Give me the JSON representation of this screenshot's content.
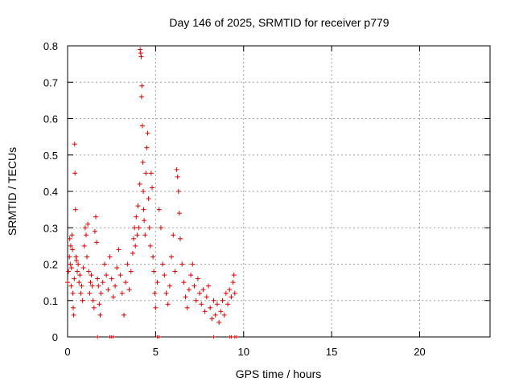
{
  "chart_data": {
    "type": "scatter",
    "title": "Day 146 of 2025, SRMTID for receiver p779",
    "xlabel": "GPS time / hours",
    "ylabel": "SRMTID / TECUs",
    "xlim": [
      0,
      24
    ],
    "ylim": [
      0,
      0.8
    ],
    "xticks": [
      0,
      5,
      10,
      15,
      20
    ],
    "yticks": [
      0,
      0.1,
      0.2,
      0.3,
      0.4,
      0.5,
      0.6,
      0.7,
      0.8
    ],
    "xtick_labels": [
      "0",
      "5",
      "10",
      "15",
      "20"
    ],
    "ytick_labels": [
      "0",
      "0.1",
      "0.2",
      "0.3",
      "0.4",
      "0.5",
      "0.6",
      "0.7",
      "0.8"
    ],
    "grid": true,
    "marker": "+",
    "series_color": "#dd0000",
    "series": [
      {
        "name": "SRMTID",
        "points": [
          [
            0.0,
            0.15
          ],
          [
            0.05,
            0.18
          ],
          [
            0.1,
            0.22
          ],
          [
            0.12,
            0.27
          ],
          [
            0.15,
            0.2
          ],
          [
            0.18,
            0.25
          ],
          [
            0.2,
            0.14
          ],
          [
            0.22,
            0.19
          ],
          [
            0.25,
            0.28
          ],
          [
            0.28,
            0.24
          ],
          [
            0.3,
            0.12
          ],
          [
            0.32,
            0.08
          ],
          [
            0.35,
            0.06
          ],
          [
            0.38,
            0.16
          ],
          [
            0.4,
            0.53
          ],
          [
            0.42,
            0.45
          ],
          [
            0.45,
            0.35
          ],
          [
            0.48,
            0.22
          ],
          [
            0.5,
            0.21
          ],
          [
            0.55,
            0.18
          ],
          [
            0.6,
            0.2
          ],
          [
            0.65,
            0.15
          ],
          [
            0.7,
            0.17
          ],
          [
            0.75,
            0.12
          ],
          [
            0.8,
            0.14
          ],
          [
            0.85,
            0.1
          ],
          [
            0.9,
            0.19
          ],
          [
            0.95,
            0.25
          ],
          [
            1.0,
            0.3
          ],
          [
            1.05,
            0.28
          ],
          [
            1.1,
            0.22
          ],
          [
            1.15,
            0.31
          ],
          [
            1.2,
            0.18
          ],
          [
            1.25,
            0.12
          ],
          [
            1.3,
            0.15
          ],
          [
            1.35,
            0.17
          ],
          [
            1.4,
            0.14
          ],
          [
            1.45,
            0.1
          ],
          [
            1.5,
            0.08
          ],
          [
            1.55,
            0.29
          ],
          [
            1.6,
            0.33
          ],
          [
            1.65,
            0.26
          ],
          [
            1.7,
            0.16
          ],
          [
            1.75,
            0.14
          ],
          [
            1.8,
            0.09
          ],
          [
            1.85,
            0.06
          ],
          [
            1.9,
            0.12
          ],
          [
            2.0,
            0.15
          ],
          [
            2.1,
            0.2
          ],
          [
            2.2,
            0.17
          ],
          [
            2.3,
            0.13
          ],
          [
            2.4,
            0.22
          ],
          [
            2.5,
            0.16
          ],
          [
            2.6,
            0.11
          ],
          [
            2.7,
            0.14
          ],
          [
            2.8,
            0.19
          ],
          [
            2.9,
            0.24
          ],
          [
            3.0,
            0.17
          ],
          [
            3.1,
            0.12
          ],
          [
            3.2,
            0.06
          ],
          [
            3.3,
            0.15
          ],
          [
            3.4,
            0.2
          ],
          [
            3.5,
            0.13
          ],
          [
            3.6,
            0.18
          ],
          [
            3.7,
            0.23
          ],
          [
            3.75,
            0.27
          ],
          [
            3.8,
            0.3
          ],
          [
            3.85,
            0.25
          ],
          [
            3.9,
            0.33
          ],
          [
            3.95,
            0.28
          ],
          [
            4.0,
            0.36
          ],
          [
            4.05,
            0.3
          ],
          [
            4.1,
            0.42
          ],
          [
            4.12,
            0.79
          ],
          [
            4.15,
            0.78
          ],
          [
            4.18,
            0.77
          ],
          [
            4.2,
            0.66
          ],
          [
            4.22,
            0.69
          ],
          [
            4.25,
            0.58
          ],
          [
            4.28,
            0.48
          ],
          [
            4.3,
            0.4
          ],
          [
            4.32,
            0.35
          ],
          [
            4.35,
            0.32
          ],
          [
            4.4,
            0.28
          ],
          [
            4.45,
            0.45
          ],
          [
            4.5,
            0.52
          ],
          [
            4.55,
            0.56
          ],
          [
            4.6,
            0.38
          ],
          [
            4.65,
            0.3
          ],
          [
            4.7,
            0.25
          ],
          [
            4.75,
            0.45
          ],
          [
            4.8,
            0.41
          ],
          [
            4.85,
            0.22
          ],
          [
            4.9,
            0.18
          ],
          [
            4.95,
            0.12
          ],
          [
            5.0,
            0.08
          ],
          [
            5.1,
            0.15
          ],
          [
            5.2,
            0.35
          ],
          [
            5.3,
            0.3
          ],
          [
            5.4,
            0.2
          ],
          [
            5.5,
            0.17
          ],
          [
            5.6,
            0.12
          ],
          [
            5.7,
            0.09
          ],
          [
            5.8,
            0.14
          ],
          [
            5.9,
            0.22
          ],
          [
            6.0,
            0.28
          ],
          [
            6.1,
            0.18
          ],
          [
            6.2,
            0.46
          ],
          [
            6.25,
            0.44
          ],
          [
            6.3,
            0.4
          ],
          [
            6.35,
            0.34
          ],
          [
            6.4,
            0.27
          ],
          [
            6.5,
            0.2
          ],
          [
            6.6,
            0.15
          ],
          [
            6.7,
            0.11
          ],
          [
            6.8,
            0.08
          ],
          [
            6.9,
            0.13
          ],
          [
            7.0,
            0.17
          ],
          [
            7.1,
            0.2
          ],
          [
            7.2,
            0.14
          ],
          [
            7.3,
            0.1
          ],
          [
            7.4,
            0.16
          ],
          [
            7.5,
            0.12
          ],
          [
            7.6,
            0.09
          ],
          [
            7.7,
            0.13
          ],
          [
            7.8,
            0.07
          ],
          [
            7.9,
            0.11
          ],
          [
            8.0,
            0.14
          ],
          [
            8.1,
            0.08
          ],
          [
            8.2,
            0.05
          ],
          [
            8.3,
            0.1
          ],
          [
            8.4,
            0.06
          ],
          [
            8.5,
            0.09
          ],
          [
            8.6,
            0.04
          ],
          [
            8.7,
            0.07
          ],
          [
            8.8,
            0.1
          ],
          [
            8.9,
            0.06
          ],
          [
            9.0,
            0.12
          ],
          [
            9.1,
            0.09
          ],
          [
            9.2,
            0.13
          ],
          [
            9.3,
            0.11
          ],
          [
            9.4,
            0.15
          ],
          [
            9.45,
            0.17
          ],
          [
            9.5,
            0.12
          ]
        ]
      }
    ],
    "zero_markers_x": [
      1.7,
      2.4,
      2.5,
      2.6,
      5.1,
      5.2,
      8.3,
      9.2,
      9.3,
      9.5,
      9.6
    ],
    "zero_markers_y": 0
  }
}
